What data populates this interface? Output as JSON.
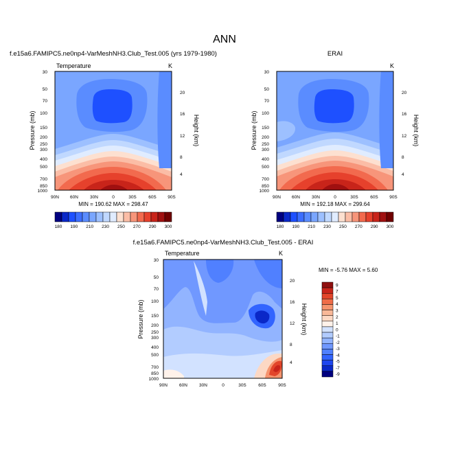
{
  "figure": {
    "title": "ANN"
  },
  "colors": {
    "main_scale": [
      "#000080",
      "#0a28c8",
      "#1e50ff",
      "#3c6eff",
      "#5a8cff",
      "#7aa6ff",
      "#9dc0ff",
      "#c0d8ff",
      "#e0ecff",
      "#fde0d0",
      "#fbbda6",
      "#f7957a",
      "#f26a4e",
      "#e6412c",
      "#c8241a",
      "#a01010",
      "#700000"
    ],
    "diff_scale": [
      "#000080",
      "#0a28c8",
      "#1e46ee",
      "#3264ff",
      "#5080ff",
      "#7098ff",
      "#92b4ff",
      "#b2ccff",
      "#d2e2ff",
      "#fff2ea",
      "#fcd8c4",
      "#f9b898",
      "#f5946e",
      "#ef6c48",
      "#e2452a",
      "#c8241a",
      "#8f0f0f"
    ]
  },
  "chart_data": [
    {
      "id": "model",
      "type": "heatmap",
      "title": "f.e15a6.FAMIPC5.ne0np4-VarMeshNH3.Club_Test.005 (yrs 1979-1980)",
      "left_label": "Temperature",
      "right_label": "K",
      "xlabel": "",
      "ylabel": "Pressure (mb)",
      "y2label": "Height (km)",
      "x_ticks": [
        "90N",
        "60N",
        "30N",
        "0",
        "30S",
        "60S",
        "90S"
      ],
      "y_ticks": [
        30,
        50,
        70,
        100,
        150,
        200,
        250,
        300,
        400,
        500,
        700,
        850,
        1000
      ],
      "y2_ticks": [
        4,
        8,
        12,
        16,
        20
      ],
      "ylim": [
        1000,
        30
      ],
      "y_scale": "log",
      "stats": "MIN = 190.62  MAX = 298.47",
      "min": 190.62,
      "max": 298.47,
      "colorbar_labels": [
        "180",
        "190",
        "210",
        "230",
        "250",
        "270",
        "290",
        "300"
      ]
    },
    {
      "id": "obs",
      "type": "heatmap",
      "title": "ERAI",
      "left_label": "",
      "right_label": "K",
      "xlabel": "",
      "ylabel": "Pressure (mb)",
      "y2label": "Height (km)",
      "x_ticks": [
        "90N",
        "60N",
        "30N",
        "0",
        "30S",
        "60S",
        "90S"
      ],
      "y_ticks": [
        30,
        50,
        70,
        100,
        150,
        200,
        250,
        300,
        400,
        500,
        700,
        850,
        1000
      ],
      "y2_ticks": [
        4,
        8,
        12,
        16,
        20
      ],
      "ylim": [
        1000,
        30
      ],
      "y_scale": "log",
      "stats": "MIN = 192.18  MAX = 299.64",
      "min": 192.18,
      "max": 299.64,
      "colorbar_labels": [
        "180",
        "190",
        "210",
        "230",
        "250",
        "270",
        "290",
        "300"
      ]
    },
    {
      "id": "diff",
      "type": "heatmap",
      "title": "f.e15a6.FAMIPC5.ne0np4-VarMeshNH3.Club_Test.005 - ERAI",
      "left_label": "Temperature",
      "right_label": "K",
      "xlabel": "",
      "ylabel": "Pressure (mb)",
      "y2label": "Height (km)",
      "x_ticks": [
        "90N",
        "60N",
        "30N",
        "0",
        "30S",
        "60S",
        "90S"
      ],
      "y_ticks": [
        30,
        50,
        70,
        100,
        150,
        200,
        250,
        300,
        400,
        500,
        700,
        850,
        1000
      ],
      "y2_ticks": [
        4,
        8,
        12,
        16,
        20
      ],
      "ylim": [
        1000,
        30
      ],
      "y_scale": "log",
      "stats": "MIN = -5.76  MAX =  5.60",
      "min": -5.76,
      "max": 5.6,
      "colorbar_labels": [
        "9",
        "7",
        "5",
        "4",
        "3",
        "2",
        "1",
        "0",
        "-1",
        "-2",
        "-3",
        "-4",
        "-5",
        "-7",
        "-9"
      ]
    }
  ]
}
